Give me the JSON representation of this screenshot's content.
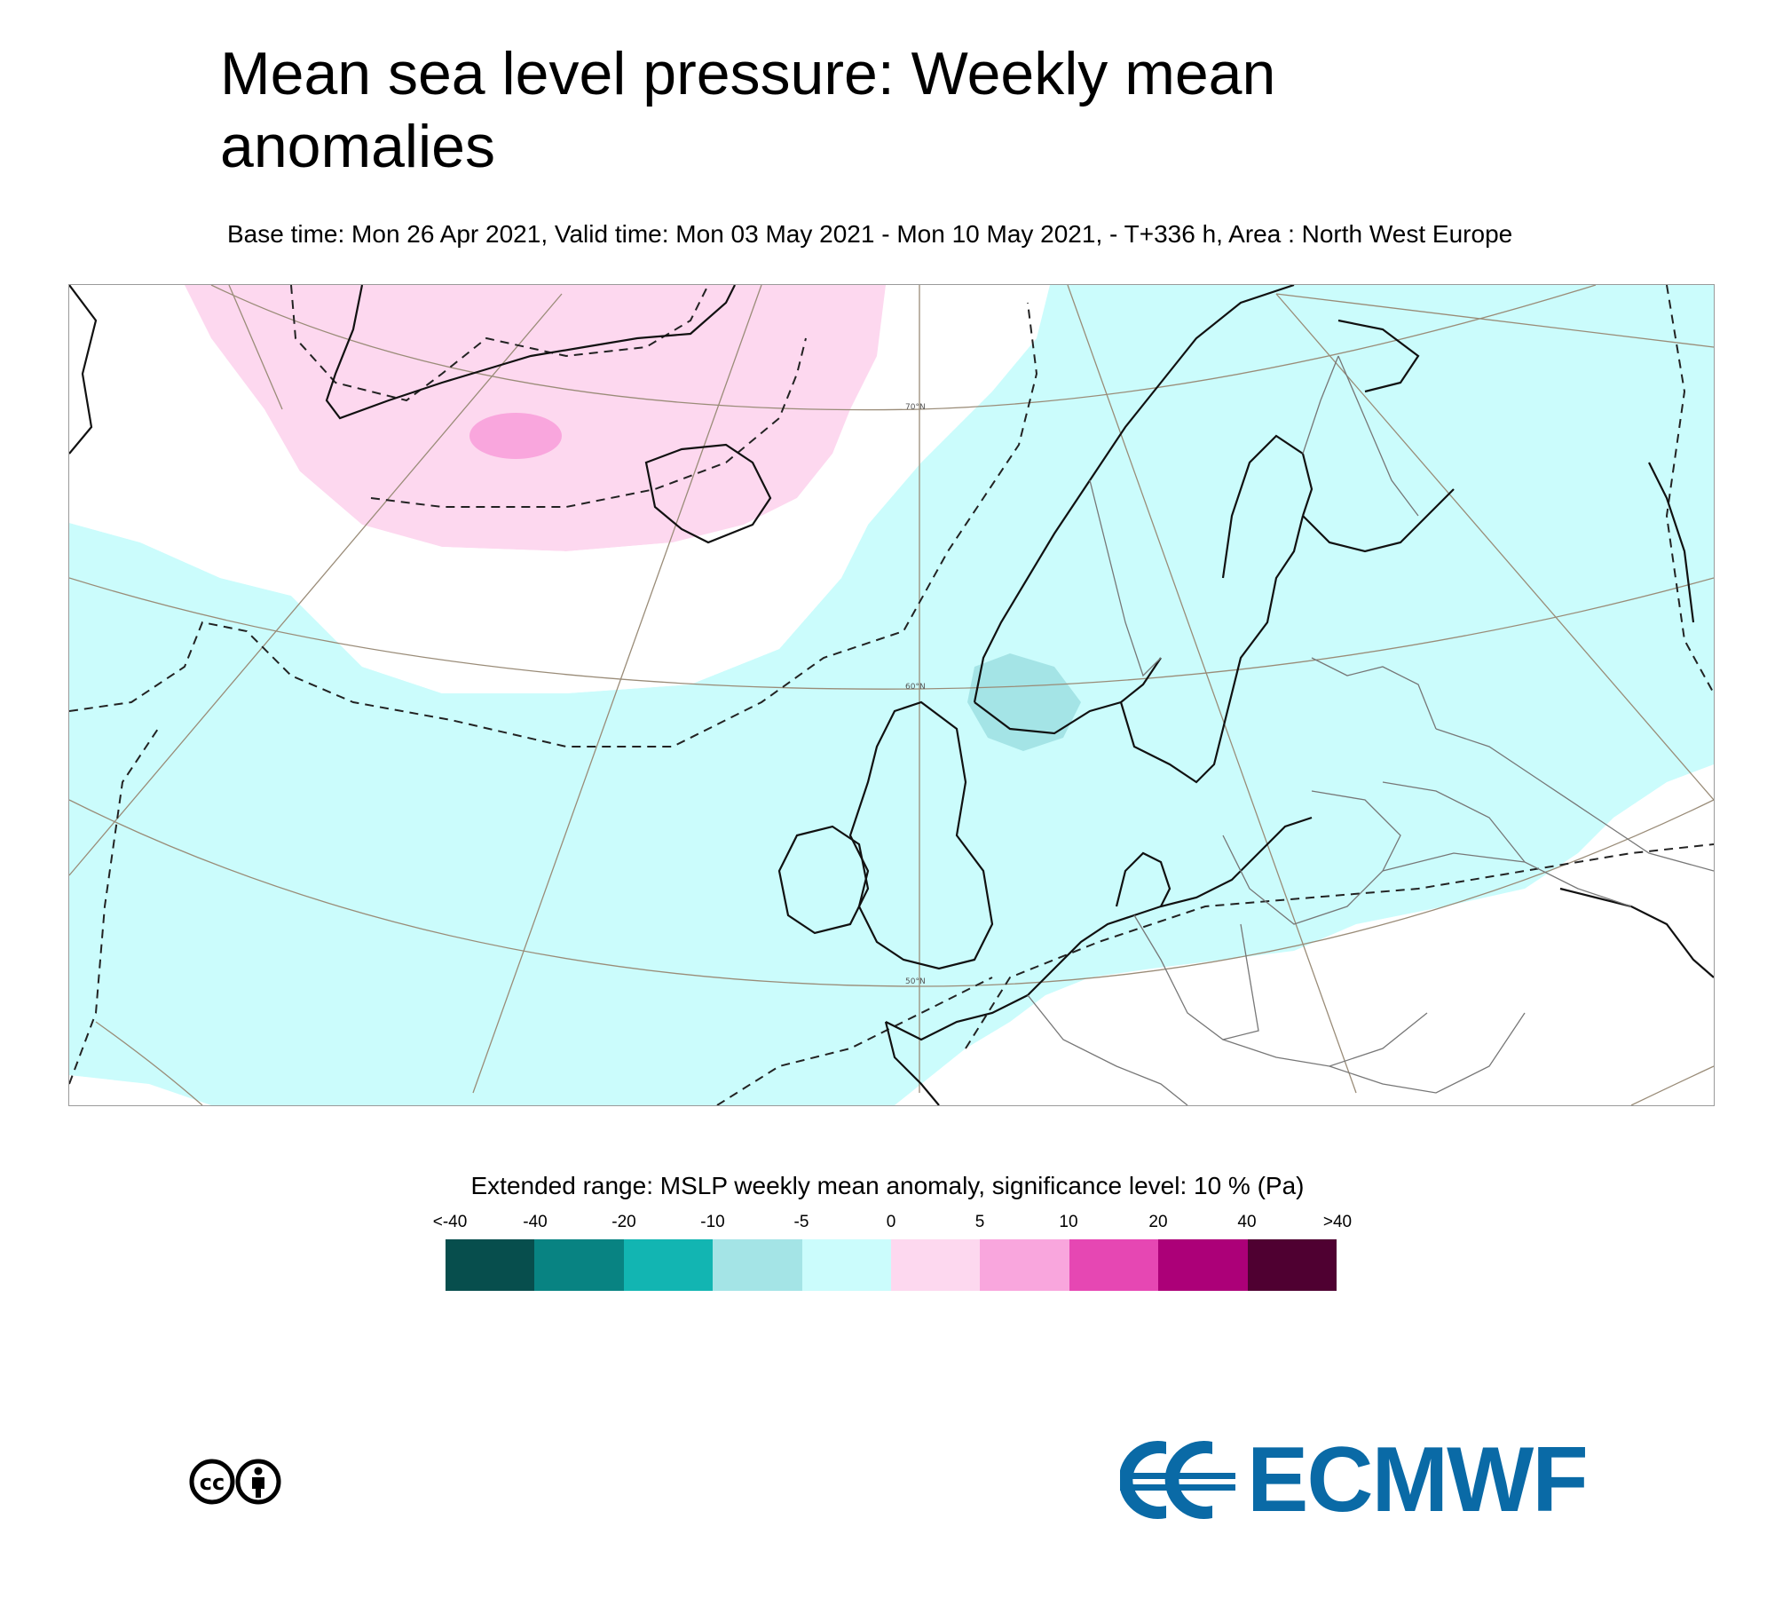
{
  "title": "Mean sea level pressure: Weekly mean anomalies",
  "subtitle": "Base time: Mon 26 Apr 2021, Valid time: Mon 03 May 2021 - Mon 10 May 2021, - T+336 h, Area : North West Europe",
  "map": {
    "graticule_labels": [
      "70°N",
      "60°N",
      "50°N"
    ],
    "colors": {
      "positive_light": "#fdd8ef",
      "positive_mid": "#f9a6dd",
      "negative_light": "#cbfcfc",
      "negative_mid": "#a4e4e6",
      "coast": "#111111",
      "border": "#777777",
      "graticule": "#9a8c78"
    }
  },
  "legend": {
    "title": "Extended range: MSLP weekly mean anomaly, significance level: 10 % (Pa)",
    "ticks": [
      "<-40",
      "-40",
      "-20",
      "-10",
      "-5",
      "0",
      "5",
      "10",
      "20",
      "40",
      ">40"
    ],
    "colors": [
      "#074e4d",
      "#088382",
      "#12b5b2",
      "#a4e4e6",
      "#cbfcfc",
      "#fdd8ef",
      "#f9a6dd",
      "#e647b3",
      "#ac0078",
      "#4f0031"
    ]
  },
  "branding": {
    "license_icon": "cc-by-icon",
    "logo_text": "ECMWF",
    "logo_color": "#0a6aa6"
  }
}
